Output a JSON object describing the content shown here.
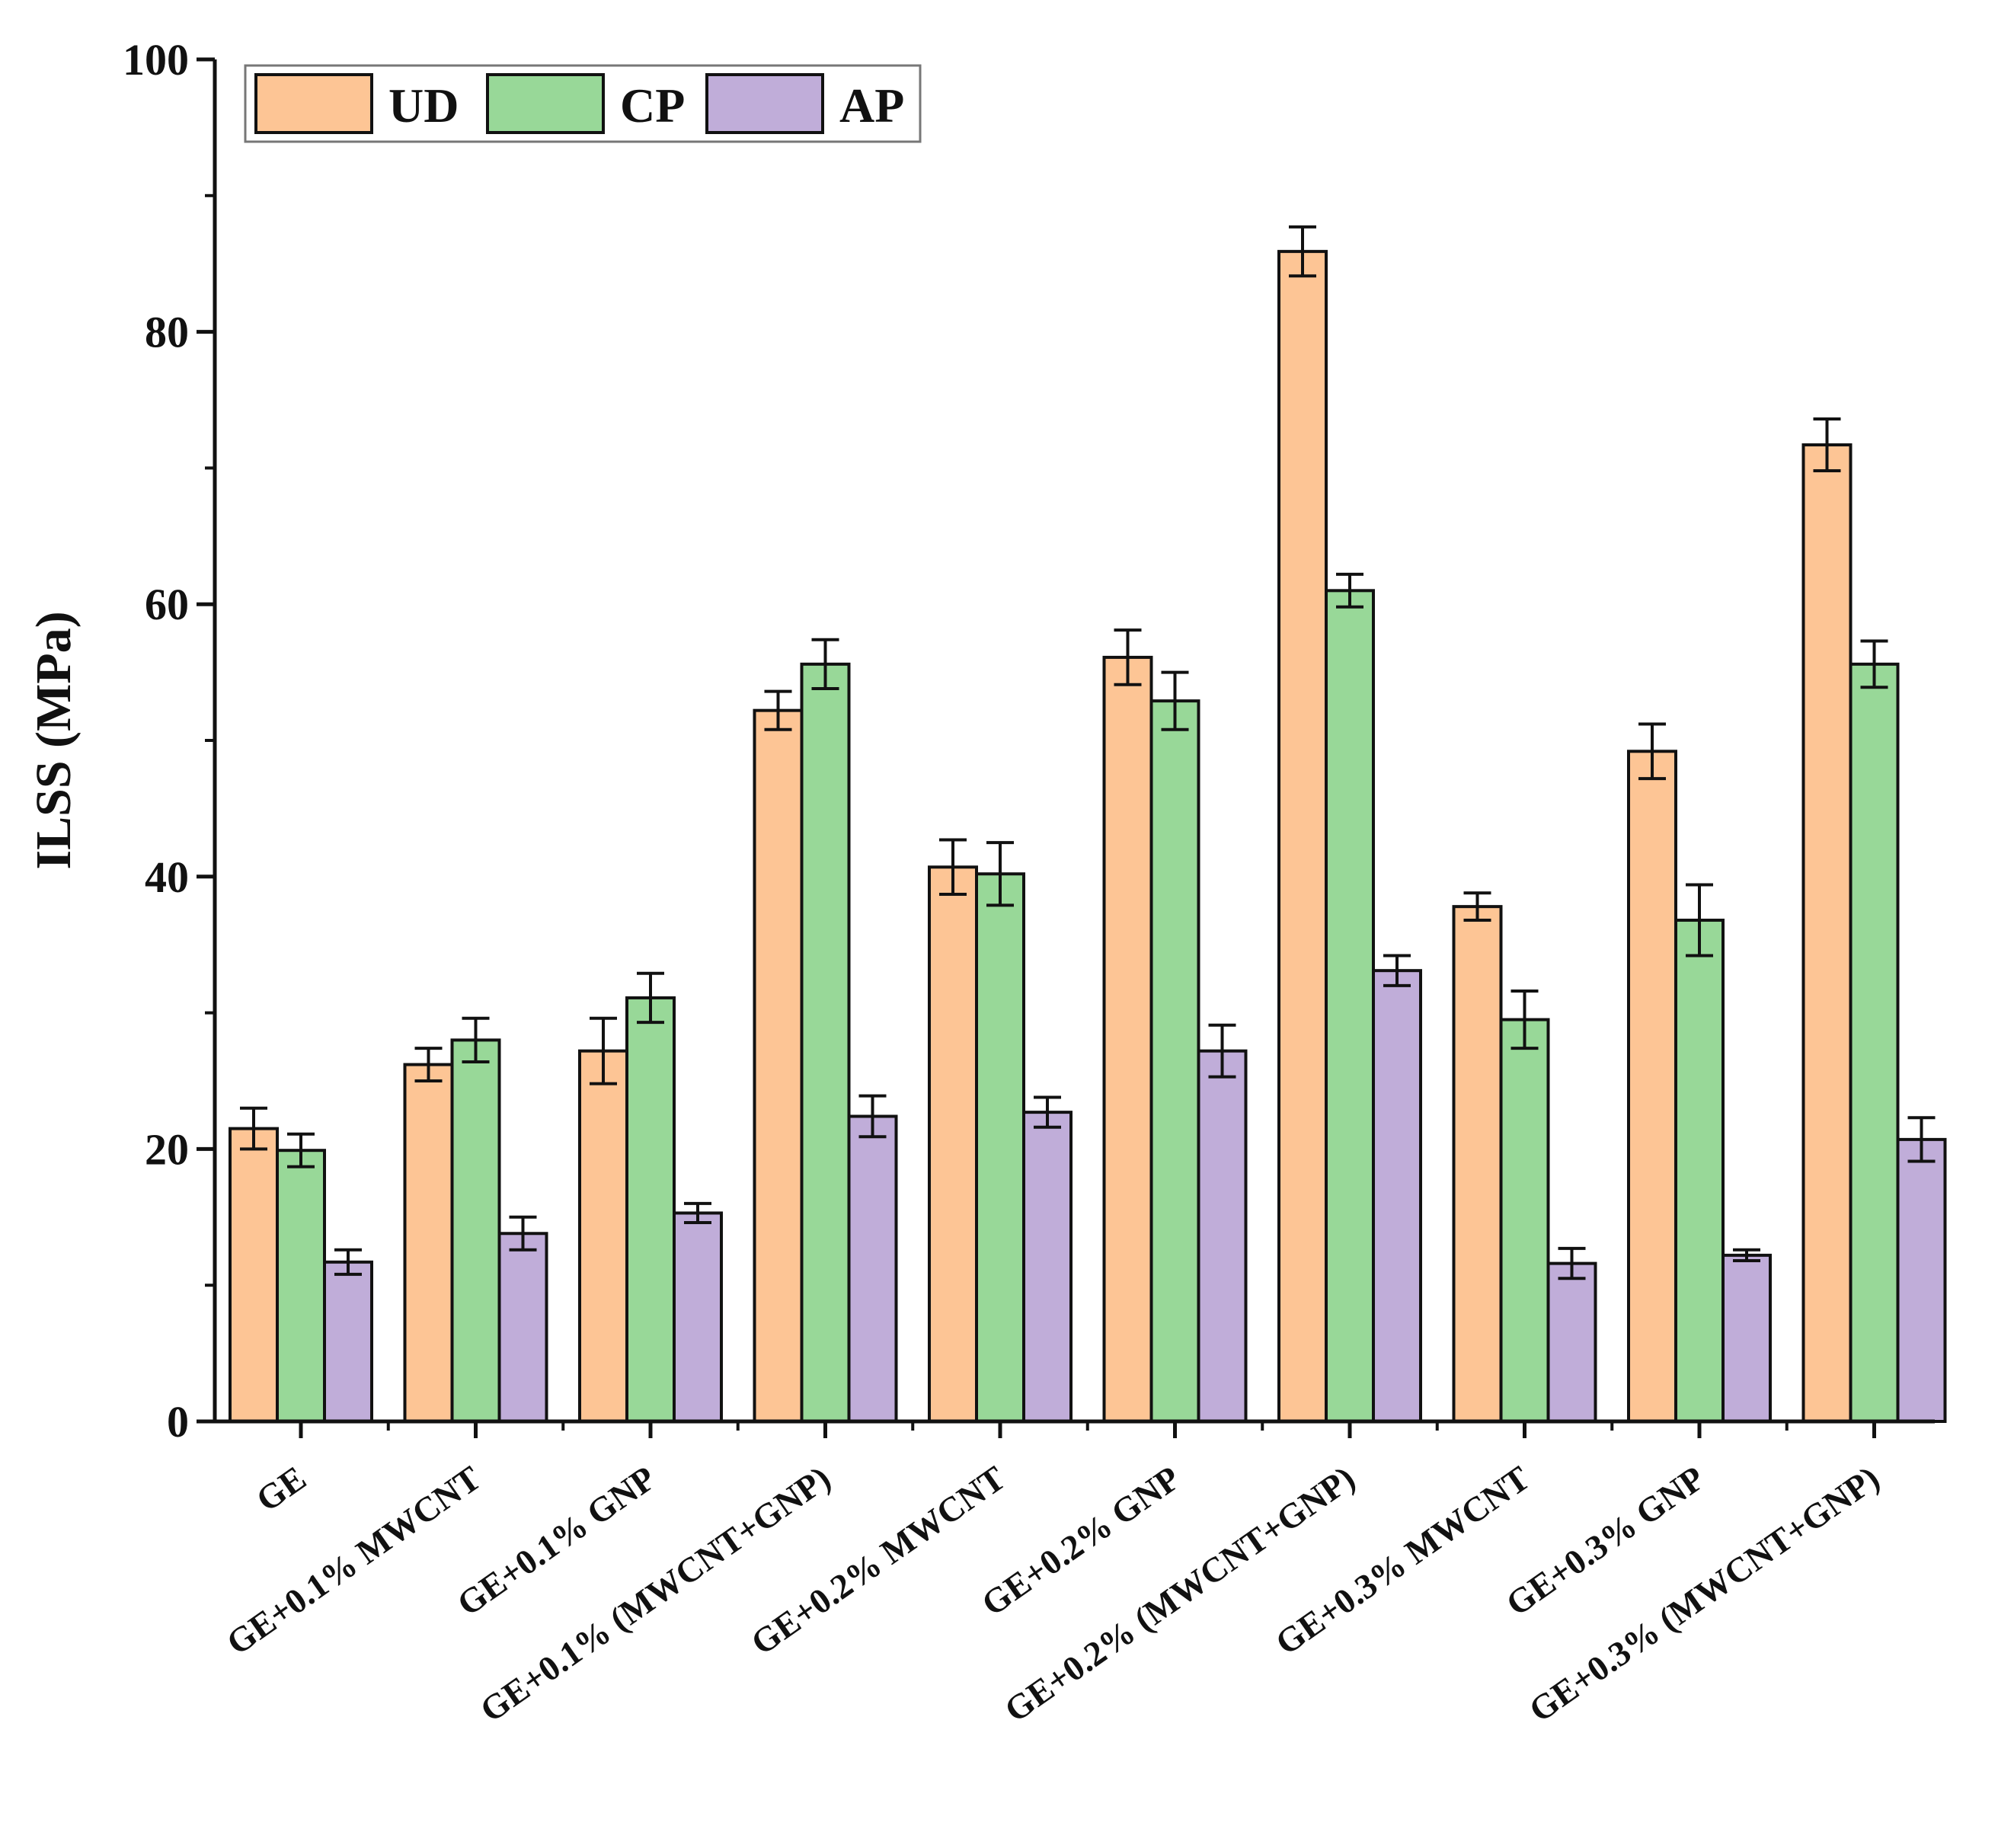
{
  "chart_data": {
    "type": "bar",
    "title": "",
    "xlabel": "",
    "ylabel": "ILSS (MPa)",
    "ylim": [
      0,
      100
    ],
    "yticks": [
      "0",
      "20",
      "40",
      "60",
      "80",
      "100"
    ],
    "categories": [
      "GE",
      "GE+0.1% MWCNT",
      "GE+0.1% GNP",
      "GE+0.1% (MWCNT+GNP)",
      "GE+0.2% MWCNT",
      "GE+0.2% GNP",
      "GE+0.2% (MWCNT+GNP)",
      "GE+0.3% MWCNT",
      "GE+0.3% GNP",
      "GE+0.3% (MWCNT+GNP)"
    ],
    "series": [
      {
        "name": "UD",
        "color": "#FDC595",
        "values": [
          21.5,
          26.2,
          27.2,
          52.2,
          40.7,
          56.1,
          85.9,
          37.8,
          49.2,
          71.7
        ],
        "errors": [
          1.5,
          1.2,
          2.4,
          1.4,
          2.0,
          2.0,
          1.8,
          1.0,
          2.0,
          1.9
        ]
      },
      {
        "name": "CP",
        "color": "#98D898",
        "values": [
          19.9,
          28.0,
          31.1,
          55.6,
          40.2,
          52.9,
          61.0,
          29.5,
          36.8,
          55.6
        ],
        "errors": [
          1.2,
          1.6,
          1.8,
          1.8,
          2.3,
          2.1,
          1.2,
          2.1,
          2.6,
          1.7
        ]
      },
      {
        "name": "AP",
        "color": "#C0ADD9",
        "values": [
          11.7,
          13.8,
          15.3,
          22.4,
          22.7,
          27.2,
          33.1,
          11.6,
          12.2,
          20.7
        ],
        "errors": [
          0.9,
          1.2,
          0.7,
          1.5,
          1.1,
          1.9,
          1.1,
          1.1,
          0.4,
          1.6
        ]
      }
    ],
    "legend_position": "top-left"
  }
}
